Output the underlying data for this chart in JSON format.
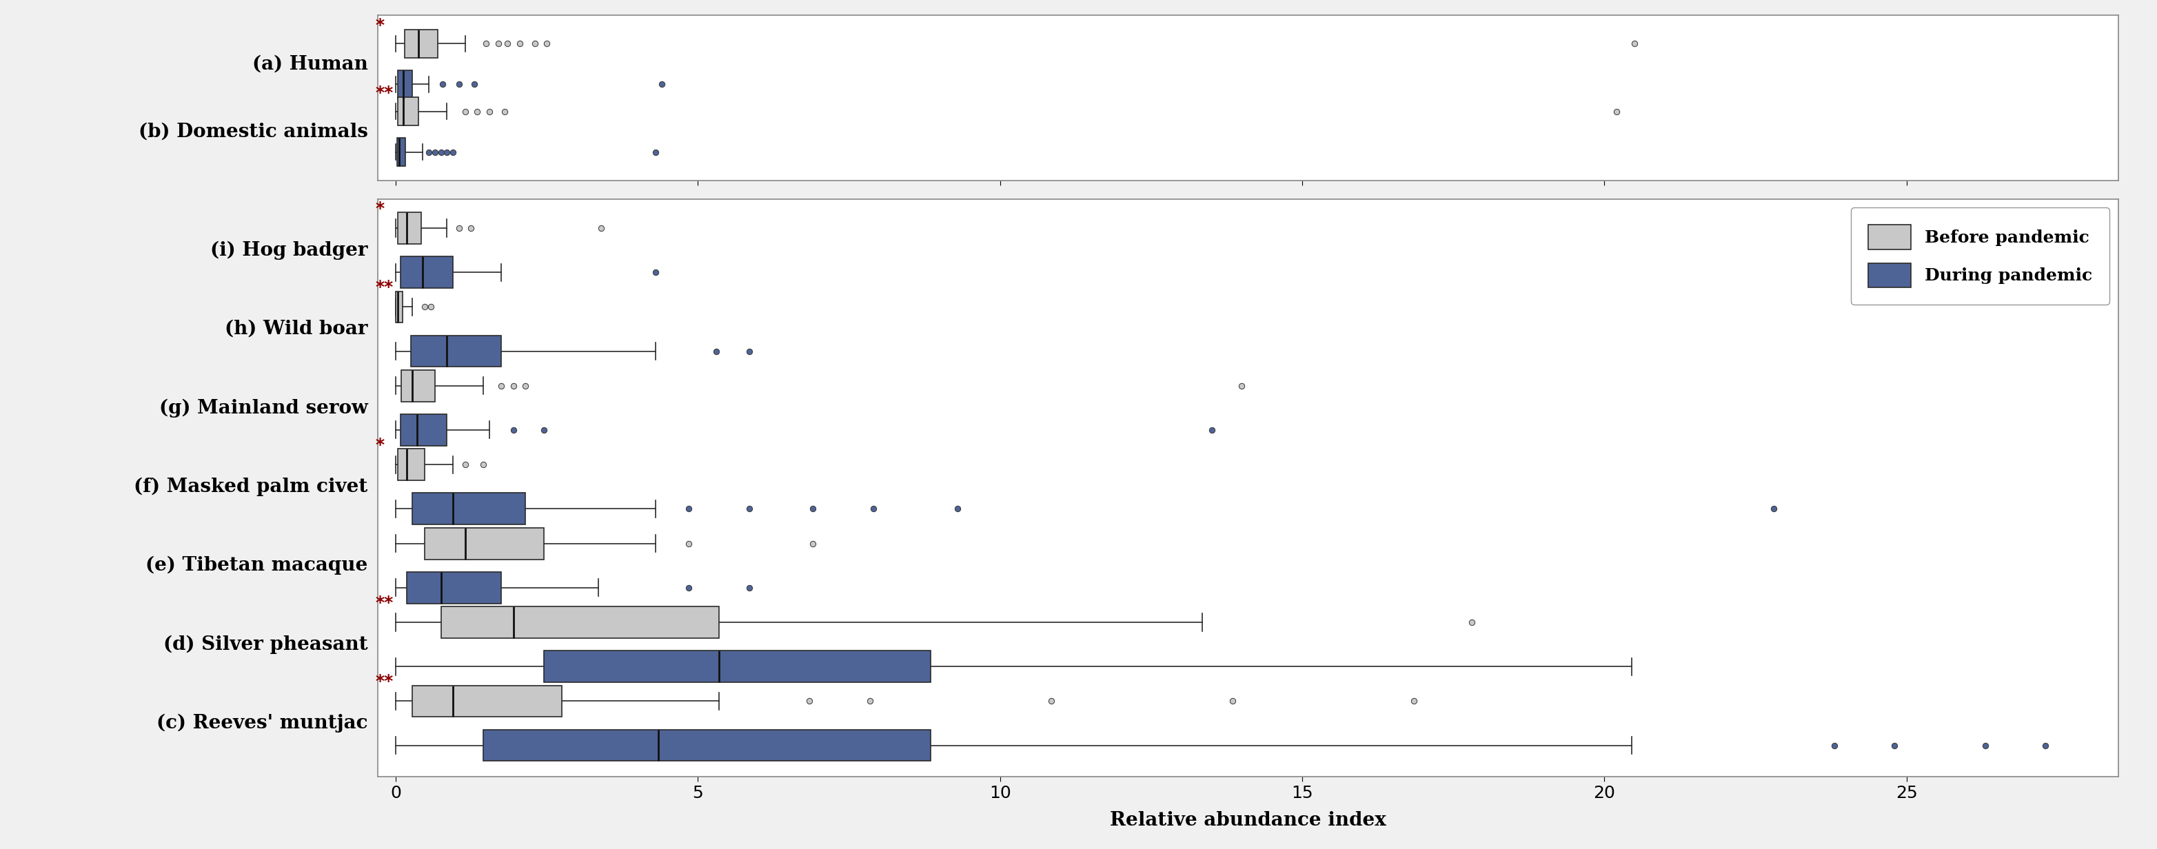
{
  "xlabel": "Relative abundance index",
  "panel1_labels": [
    "(a) Human",
    "(b) Domestic animals"
  ],
  "panel1_significance": {
    "(a) Human": "*",
    "(b) Domestic animals": "**"
  },
  "panel2_labels": [
    "(i) Hog badger",
    "(h) Wild boar",
    "(g) Mainland serow",
    "(f) Masked palm civet",
    "(e) Tibetan macaque",
    "(d) Silver pheasant",
    "(c) Reeves' muntjac"
  ],
  "panel2_significance": {
    "(i) Hog badger": "*",
    "(h) Wild boar": "**",
    "(f) Masked palm civet": "*",
    "(d) Silver pheasant": "**",
    "(c) Reeves' muntjac": "**"
  },
  "before_color": "#c8c8c8",
  "during_color": "#4f6496",
  "before_label": "Before pandemic",
  "during_label": "During pandemic",
  "xlim_max": 28.5,
  "xticks": [
    0,
    5,
    10,
    15,
    20,
    25
  ],
  "box_data": {
    "(a) Human": {
      "before": {
        "q1": 0.15,
        "median": 0.38,
        "q3": 0.7,
        "whislo": 0.0,
        "whishi": 1.15,
        "fliers": [
          1.5,
          1.7,
          1.85,
          2.05,
          2.3,
          2.5,
          20.5
        ]
      },
      "during": {
        "q1": 0.04,
        "median": 0.13,
        "q3": 0.28,
        "whislo": 0.0,
        "whishi": 0.55,
        "fliers": [
          0.78,
          1.05,
          1.3,
          4.4
        ]
      }
    },
    "(b) Domestic animals": {
      "before": {
        "q1": 0.04,
        "median": 0.13,
        "q3": 0.38,
        "whislo": 0.0,
        "whishi": 0.85,
        "fliers": [
          1.15,
          1.35,
          1.55,
          1.8,
          20.2
        ]
      },
      "during": {
        "q1": 0.02,
        "median": 0.06,
        "q3": 0.16,
        "whislo": 0.0,
        "whishi": 0.45,
        "fliers": [
          0.55,
          0.65,
          0.75,
          0.85,
          0.95,
          4.3
        ]
      }
    },
    "(i) Hog badger": {
      "before": {
        "q1": 0.04,
        "median": 0.18,
        "q3": 0.42,
        "whislo": 0.0,
        "whishi": 0.85,
        "fliers": [
          1.05,
          1.25,
          3.4
        ]
      },
      "during": {
        "q1": 0.08,
        "median": 0.45,
        "q3": 0.95,
        "whislo": 0.0,
        "whishi": 1.75,
        "fliers": [
          4.3
        ]
      }
    },
    "(h) Wild boar": {
      "before": {
        "q1": 0.0,
        "median": 0.04,
        "q3": 0.11,
        "whislo": 0.0,
        "whishi": 0.28,
        "fliers": [
          0.48,
          0.58
        ]
      },
      "during": {
        "q1": 0.25,
        "median": 0.85,
        "q3": 1.75,
        "whislo": 0.0,
        "whishi": 4.3,
        "fliers": [
          5.3,
          5.85
        ]
      }
    },
    "(g) Mainland serow": {
      "before": {
        "q1": 0.09,
        "median": 0.28,
        "q3": 0.65,
        "whislo": 0.0,
        "whishi": 1.45,
        "fliers": [
          1.75,
          1.95,
          2.15,
          14.0
        ]
      },
      "during": {
        "q1": 0.08,
        "median": 0.35,
        "q3": 0.85,
        "whislo": 0.0,
        "whishi": 1.55,
        "fliers": [
          1.95,
          2.45,
          13.5
        ]
      }
    },
    "(f) Masked palm civet": {
      "before": {
        "q1": 0.04,
        "median": 0.18,
        "q3": 0.48,
        "whislo": 0.0,
        "whishi": 0.95,
        "fliers": [
          1.15,
          1.45
        ]
      },
      "during": {
        "q1": 0.28,
        "median": 0.95,
        "q3": 2.15,
        "whislo": 0.0,
        "whishi": 4.3,
        "fliers": [
          4.85,
          5.85,
          6.9,
          7.9,
          9.3,
          22.8
        ]
      }
    },
    "(e) Tibetan macaque": {
      "before": {
        "q1": 0.48,
        "median": 1.15,
        "q3": 2.45,
        "whislo": 0.0,
        "whishi": 4.3,
        "fliers": [
          4.85,
          6.9
        ]
      },
      "during": {
        "q1": 0.18,
        "median": 0.75,
        "q3": 1.75,
        "whislo": 0.0,
        "whishi": 3.35,
        "fliers": [
          4.85,
          5.85
        ]
      }
    },
    "(d) Silver pheasant": {
      "before": {
        "q1": 0.75,
        "median": 1.95,
        "q3": 5.35,
        "whislo": 0.0,
        "whishi": 13.35,
        "fliers": [
          17.8
        ]
      },
      "during": {
        "q1": 2.45,
        "median": 5.35,
        "q3": 8.85,
        "whislo": 0.0,
        "whishi": 20.45,
        "fliers": []
      }
    },
    "(c) Reeves' muntjac": {
      "before": {
        "q1": 0.28,
        "median": 0.95,
        "q3": 2.75,
        "whislo": 0.0,
        "whishi": 5.35,
        "fliers": [
          6.85,
          7.85,
          10.85,
          13.85,
          16.85
        ]
      },
      "during": {
        "q1": 1.45,
        "median": 4.35,
        "q3": 8.85,
        "whislo": 0.0,
        "whishi": 20.45,
        "fliers": [
          23.8,
          24.8,
          26.3,
          27.3
        ]
      }
    }
  },
  "significance_color": "#8b0000",
  "fig_bg": "#f0f0f0",
  "axes_bg": "#ffffff"
}
